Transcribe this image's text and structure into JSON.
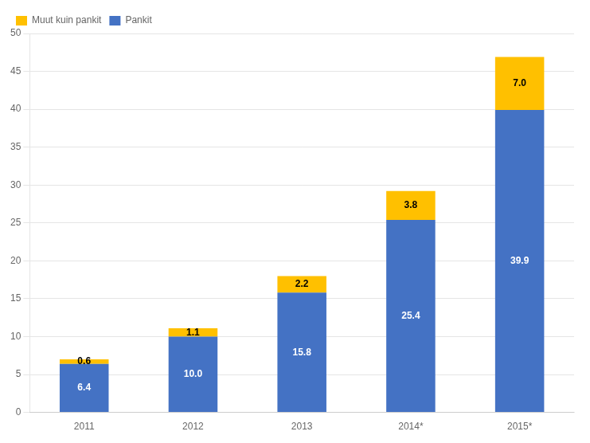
{
  "chart_data": {
    "type": "bar",
    "categories": [
      "2011",
      "2012",
      "2013",
      "2014*",
      "2015*"
    ],
    "series": [
      {
        "name": "Pankit",
        "color": "#4472C4",
        "values": [
          6.4,
          10.0,
          15.8,
          25.4,
          39.9
        ],
        "value_labels": [
          "6.4",
          "10.0",
          "15.8",
          "25.4",
          "39.9"
        ]
      },
      {
        "name": "Muut kuin pankit",
        "color": "#FFC000",
        "values": [
          0.6,
          1.1,
          2.2,
          3.8,
          7.0
        ],
        "value_labels": [
          "0.6",
          "1.1",
          "2.2",
          "3.8",
          "7.0"
        ]
      }
    ],
    "stacked": true,
    "data_labels": true,
    "ylim": [
      0,
      50
    ],
    "yticks": [
      0,
      5,
      10,
      15,
      20,
      25,
      30,
      35,
      40,
      45,
      50
    ],
    "grid": true,
    "legend": "upper left"
  }
}
